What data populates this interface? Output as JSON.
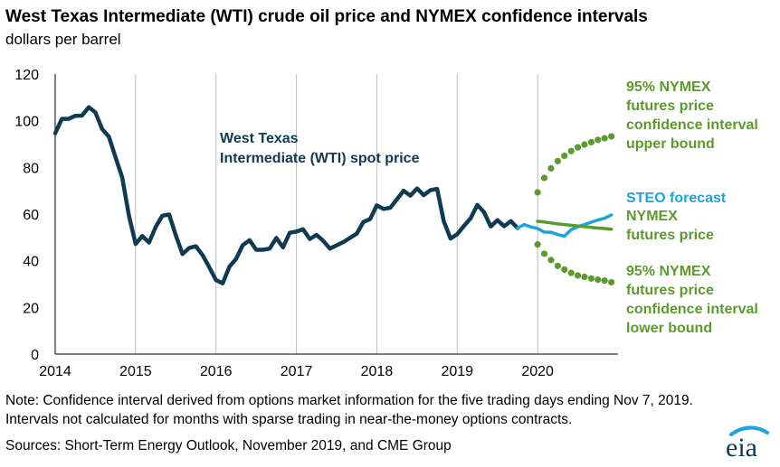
{
  "title": "West Texas Intermediate (WTI) crude oil price and NYMEX confidence intervals",
  "subtitle": "dollars per barrel",
  "note": "Note: Confidence interval derived from options market information for the five trading days ending Nov 7, 2019. Intervals not calculated for months with sparse trading in near-the-money options contracts.",
  "sources": "Sources: Short-Term Energy Outlook, November 2019, and CME Group",
  "logo_text": "eia",
  "colors": {
    "wti": "#0e3a52",
    "steo": "#1fa3dc",
    "nymex": "#5b9a2c",
    "grid": "#bfbfbf"
  },
  "chart_data": {
    "type": "line",
    "xlim": [
      2014,
      2021
    ],
    "ylim": [
      0,
      120
    ],
    "x_ticks": [
      "2014",
      "2015",
      "2016",
      "2017",
      "2018",
      "2019",
      "2020"
    ],
    "y_ticks": [
      0,
      20,
      40,
      60,
      80,
      100,
      120
    ],
    "grid": "vertical",
    "series": [
      {
        "key": "wti",
        "name": "West Texas Intermediate (WTI) spot price",
        "label_lines": [
          "West Texas",
          "Intermediate (WTI) spot price"
        ],
        "style": "solid",
        "x": [
          2014.0,
          2014.083,
          2014.167,
          2014.25,
          2014.333,
          2014.417,
          2014.5,
          2014.583,
          2014.667,
          2014.75,
          2014.833,
          2014.917,
          2015.0,
          2015.083,
          2015.167,
          2015.25,
          2015.333,
          2015.417,
          2015.5,
          2015.583,
          2015.667,
          2015.75,
          2015.833,
          2015.917,
          2016.0,
          2016.083,
          2016.167,
          2016.25,
          2016.333,
          2016.417,
          2016.5,
          2016.583,
          2016.667,
          2016.75,
          2016.833,
          2016.917,
          2017.0,
          2017.083,
          2017.167,
          2017.25,
          2017.333,
          2017.417,
          2017.5,
          2017.583,
          2017.667,
          2017.75,
          2017.833,
          2017.917,
          2018.0,
          2018.083,
          2018.167,
          2018.25,
          2018.333,
          2018.417,
          2018.5,
          2018.583,
          2018.667,
          2018.75,
          2018.833,
          2018.917,
          2019.0,
          2019.083,
          2019.167,
          2019.25,
          2019.333,
          2019.417,
          2019.5,
          2019.583,
          2019.667,
          2019.75
        ],
        "y": [
          94.6,
          100.8,
          100.8,
          102.1,
          102.2,
          105.8,
          103.6,
          96.5,
          93.2,
          84.4,
          75.8,
          59.3,
          47.2,
          50.6,
          47.8,
          54.5,
          59.3,
          59.8,
          50.9,
          42.9,
          45.5,
          46.2,
          42.4,
          37.2,
          31.7,
          30.3,
          37.5,
          40.8,
          46.7,
          48.8,
          44.7,
          44.7,
          45.2,
          49.8,
          45.7,
          52.0,
          52.5,
          53.5,
          49.3,
          51.1,
          48.5,
          45.2,
          46.6,
          48.0,
          49.8,
          51.6,
          56.6,
          57.9,
          63.7,
          62.2,
          62.7,
          66.3,
          70.0,
          67.9,
          71.0,
          68.1,
          70.2,
          70.8,
          57.0,
          49.5,
          51.4,
          54.9,
          58.2,
          63.9,
          60.8,
          54.7,
          57.4,
          54.8,
          57.0,
          54.0
        ]
      },
      {
        "key": "steo",
        "name": "STEO forecast",
        "label_lines": [
          "STEO forecast"
        ],
        "style": "solid",
        "x": [
          2019.75,
          2019.833,
          2019.917,
          2020.0,
          2020.083,
          2020.167,
          2020.25,
          2020.333,
          2020.417,
          2020.5,
          2020.583,
          2020.667,
          2020.75,
          2020.833,
          2020.917
        ],
        "y": [
          54.0,
          55.5,
          54.5,
          53.8,
          52.3,
          52.2,
          51.2,
          50.5,
          53.3,
          54.6,
          55.5,
          56.5,
          57.5,
          58.2,
          59.6
        ]
      },
      {
        "key": "nymex",
        "name": "NYMEX futures price",
        "label_lines": [
          "NYMEX",
          "futures price"
        ],
        "style": "solid",
        "x": [
          2020.0,
          2020.083,
          2020.167,
          2020.25,
          2020.333,
          2020.417,
          2020.5,
          2020.583,
          2020.667,
          2020.75,
          2020.833,
          2020.917
        ],
        "y": [
          56.9,
          56.6,
          56.2,
          55.8,
          55.5,
          55.2,
          54.9,
          54.6,
          54.3,
          54.0,
          53.8,
          53.5
        ]
      },
      {
        "key": "upper",
        "name": "95% NYMEX futures price confidence interval upper bound",
        "label_lines": [
          "95% NYMEX",
          "futures price",
          "confidence interval",
          "upper bound"
        ],
        "style": "dotted",
        "x": [
          2020.0,
          2020.083,
          2020.167,
          2020.25,
          2020.333,
          2020.417,
          2020.5,
          2020.583,
          2020.667,
          2020.75,
          2020.833,
          2020.917
        ],
        "y": [
          69.3,
          75.5,
          79.6,
          82.7,
          85.0,
          87.0,
          88.6,
          89.8,
          90.8,
          91.8,
          92.5,
          93.3
        ]
      },
      {
        "key": "lower",
        "name": "95% NYMEX futures price confidence interval lower bound",
        "label_lines": [
          "95% NYMEX",
          "futures price",
          "confidence interval",
          "lower bound"
        ],
        "style": "dotted",
        "x": [
          2020.0,
          2020.083,
          2020.167,
          2020.25,
          2020.333,
          2020.417,
          2020.5,
          2020.583,
          2020.667,
          2020.75,
          2020.833,
          2020.917
        ],
        "y": [
          47.0,
          43.0,
          40.3,
          37.8,
          36.2,
          34.8,
          33.7,
          33.1,
          32.4,
          31.9,
          31.5,
          30.8
        ]
      }
    ]
  }
}
